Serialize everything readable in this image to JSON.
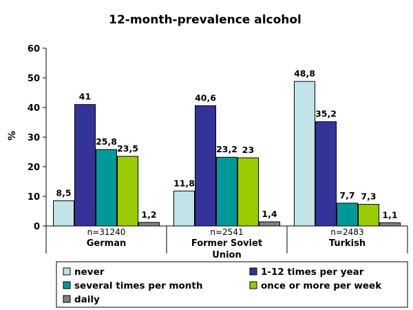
{
  "chart_data": {
    "type": "bar",
    "title": "12-month-prevalence alcohol",
    "ylabel": "%",
    "xlabel": "",
    "ylim": [
      0,
      60
    ],
    "yticks": [
      "0",
      "10",
      "20",
      "30",
      "40",
      "50",
      "60"
    ],
    "categories": [
      {
        "name_lines": [
          "German"
        ],
        "n": "n=31240"
      },
      {
        "name_lines": [
          "Former Soviet",
          "Union"
        ],
        "n": "n=2541"
      },
      {
        "name_lines": [
          "Turkish"
        ],
        "n": "n=2483"
      }
    ],
    "series": [
      {
        "name": "never",
        "color": "#bfe3e6",
        "values": [
          8.5,
          11.8,
          48.8
        ],
        "labels": [
          "8,5",
          "11,8",
          "48,8"
        ]
      },
      {
        "name": "1-12 times per year",
        "color": "#333399",
        "values": [
          41,
          40.6,
          35.2
        ],
        "labels": [
          "41",
          "40,6",
          "35,2"
        ]
      },
      {
        "name": "several times per month",
        "color": "#009999",
        "values": [
          25.8,
          23.2,
          7.7
        ],
        "labels": [
          "25,8",
          "23,2",
          "7,7"
        ]
      },
      {
        "name": "once or more per week",
        "color": "#99cc00",
        "values": [
          23.5,
          23,
          7.3
        ],
        "labels": [
          "23,5",
          "23",
          "7,3"
        ]
      },
      {
        "name": "daily",
        "color": "#808080",
        "values": [
          1.2,
          1.4,
          1.1
        ],
        "labels": [
          "1,2",
          "1,4",
          "1,1"
        ]
      }
    ],
    "legend": {
      "position": "bottom",
      "columns": 2
    },
    "grid": false
  }
}
